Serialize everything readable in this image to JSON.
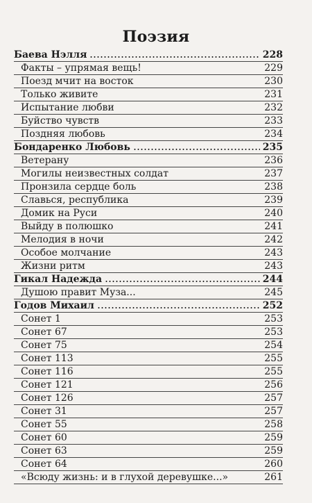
{
  "title": "Поэзия",
  "entries": [
    {
      "label": "Баева Нэлля",
      "page": "228",
      "author": true
    },
    {
      "label": "Факты – упрямая вещь!",
      "page": "229",
      "author": false
    },
    {
      "label": "Поезд мчит на восток",
      "page": "230",
      "author": false
    },
    {
      "label": "Только живите",
      "page": "231",
      "author": false
    },
    {
      "label": "Испытание любви",
      "page": "232",
      "author": false
    },
    {
      "label": "Буйство чувств",
      "page": "233",
      "author": false
    },
    {
      "label": "Поздняя любовь",
      "page": "234",
      "author": false
    },
    {
      "label": "Бондаренко Любовь",
      "page": "235",
      "author": true
    },
    {
      "label": "Ветерану",
      "page": "236",
      "author": false
    },
    {
      "label": "Могилы неизвестных солдат",
      "page": "237",
      "author": false
    },
    {
      "label": "Пронзила сердце боль",
      "page": "238",
      "author": false
    },
    {
      "label": "Славься, республика",
      "page": "239",
      "author": false
    },
    {
      "label": "Домик на Руси",
      "page": "240",
      "author": false
    },
    {
      "label": "Выйду в полюшко",
      "page": "241",
      "author": false
    },
    {
      "label": "Мелодия в ночи",
      "page": "242",
      "author": false
    },
    {
      "label": "Особое молчание",
      "page": "243",
      "author": false
    },
    {
      "label": "Жизни ритм",
      "page": "243",
      "author": false
    },
    {
      "label": "Гикал Надежда",
      "page": "244",
      "author": true
    },
    {
      "label": "Душою правит Муза...",
      "page": "245",
      "author": false
    },
    {
      "label": "Годов Михаил",
      "page": "252",
      "author": true
    },
    {
      "label": "Сонет 1",
      "page": "253",
      "author": false
    },
    {
      "label": "Сонет 67",
      "page": "253",
      "author": false
    },
    {
      "label": "Сонет 75",
      "page": "254",
      "author": false
    },
    {
      "label": "Сонет 113",
      "page": "255",
      "author": false
    },
    {
      "label": "Сонет 116",
      "page": "255",
      "author": false
    },
    {
      "label": "Сонет 121",
      "page": "256",
      "author": false
    },
    {
      "label": "Сонет 126",
      "page": "257",
      "author": false
    },
    {
      "label": "Сонет 31",
      "page": "257",
      "author": false
    },
    {
      "label": "Сонет 55",
      "page": "258",
      "author": false
    },
    {
      "label": "Сонет 60",
      "page": "259",
      "author": false
    },
    {
      "label": "Сонет 63",
      "page": "259",
      "author": false
    },
    {
      "label": "Сонет 64",
      "page": "260",
      "author": false
    },
    {
      "label": "«Всюду жизнь: и в глухой деревушке...»",
      "page": "261",
      "author": false
    }
  ]
}
